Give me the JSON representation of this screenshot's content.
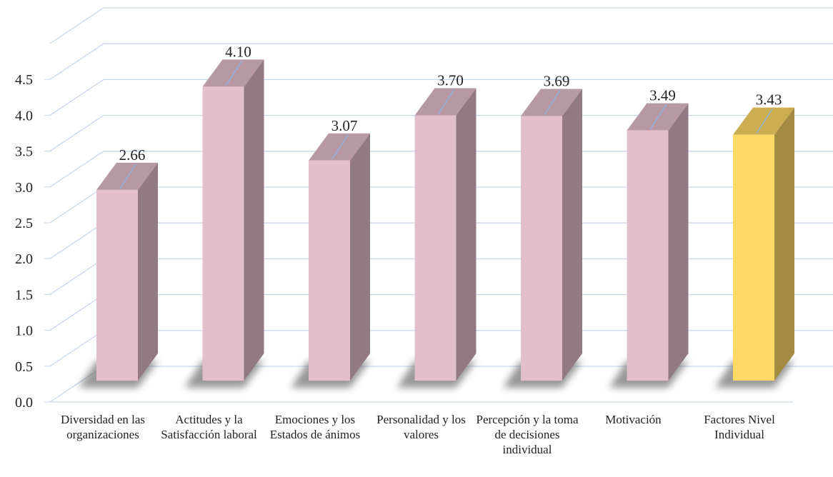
{
  "chart_data": {
    "type": "bar3d",
    "categories": [
      "Diversidad en las organizaciones",
      "Actitudes y la Satisfacción laboral",
      "Emociones y los Estados de ánimos",
      "Personalidad y los valores",
      "Percepción y la toma de decisiones individual",
      "Motivación",
      "Factores Nivel Individual"
    ],
    "values": [
      2.66,
      4.1,
      3.07,
      3.7,
      3.69,
      3.49,
      3.43
    ],
    "value_labels": [
      "2.66",
      "4.10",
      "3.07",
      "3.70",
      "3.69",
      "3.49",
      "3.43"
    ],
    "colors": [
      "#e3bfcb",
      "#e3bfcb",
      "#e3bfcb",
      "#e3bfcb",
      "#e3bfcb",
      "#e3bfcb",
      "#ffd966"
    ],
    "ylim": [
      0,
      5
    ],
    "yticks": [
      {
        "value": 0,
        "label": "0.0"
      },
      0.5,
      {
        "value": 1,
        "label": "1.0"
      },
      1.5,
      {
        "value": 2,
        "label": "2.0"
      },
      2.5,
      {
        "value": 3,
        "label": "3.0"
      },
      3.5,
      {
        "value": 4,
        "label": "4.0"
      },
      4.5
    ],
    "grid": true
  }
}
